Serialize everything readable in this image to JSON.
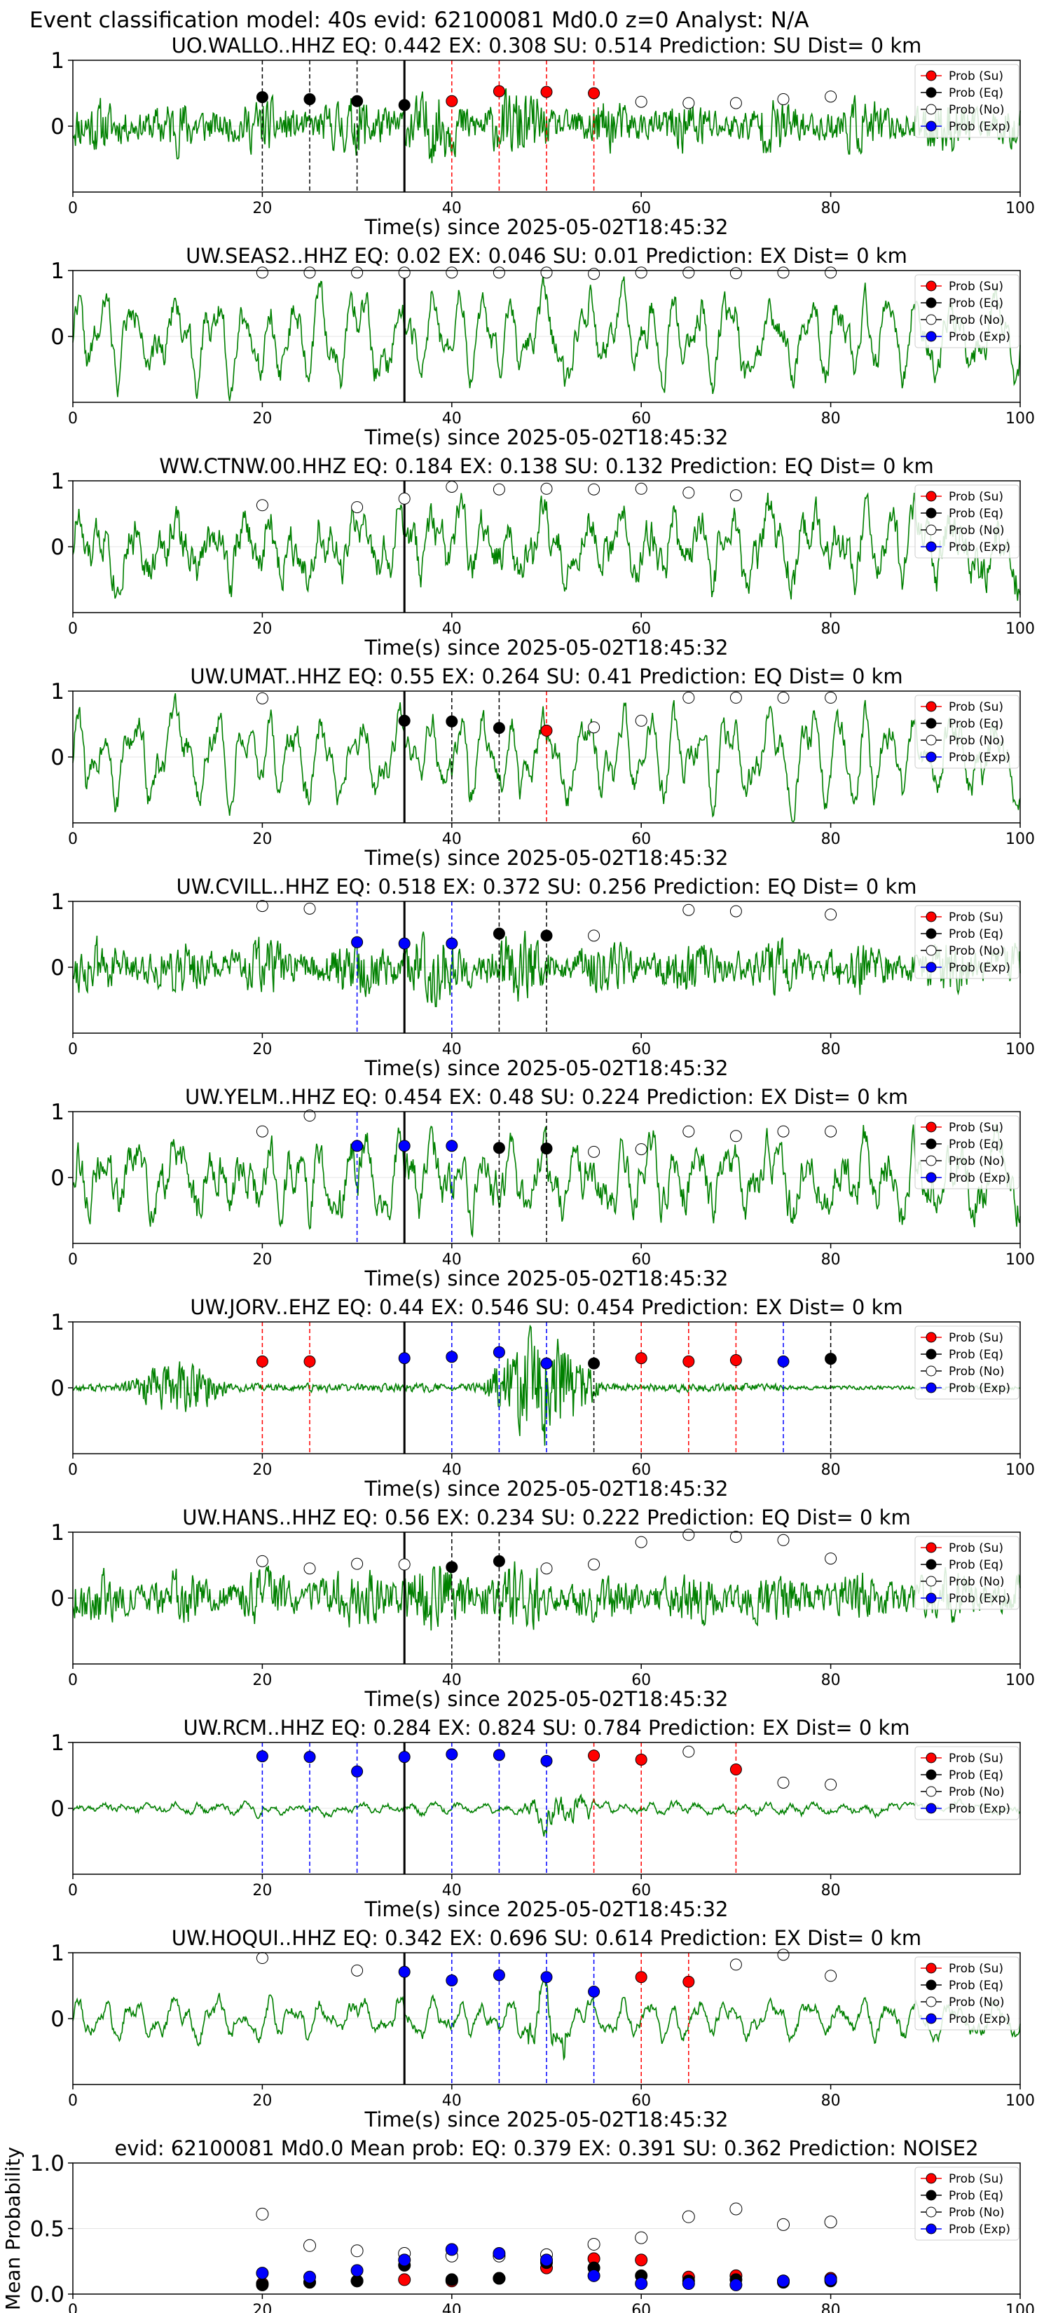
{
  "figure_title": "Event classification model: 40s evid: 62100081 Md0.0 z=0 Analyst: N/A",
  "legend_labels": {
    "su": "Prob (Su)",
    "eq": "Prob (Eq)",
    "no": "Prob (No)",
    "exp": "Prob (Exp)"
  },
  "colors": {
    "waveform": "#008000",
    "su": "#ff0000",
    "eq": "#000000",
    "no": "#ffffff",
    "exp": "#0000ff",
    "origin_line": "#000000"
  },
  "chart_data": [
    {
      "type": "line",
      "title": "UO.WALLO..HHZ   EQ: 0.442   EX: 0.308   SU: 0.514   Prediction: SU    Dist= 0 km",
      "xlabel": "Time(s) since 2025-05-02T18:45:32",
      "xlim": [
        0,
        100
      ],
      "ylim": [
        -1,
        1
      ],
      "xticks": [
        "0",
        "20",
        "40",
        "60",
        "80",
        "100"
      ],
      "yticks": [
        "0",
        "1"
      ],
      "origin_time": 35,
      "waveform": {
        "style": "noise",
        "seed": 11
      },
      "points": [
        {
          "x": 20,
          "y": 0.44,
          "cls": "eq"
        },
        {
          "x": 25,
          "y": 0.41,
          "cls": "eq"
        },
        {
          "x": 30,
          "y": 0.38,
          "cls": "eq"
        },
        {
          "x": 35,
          "y": 0.32,
          "cls": "eq"
        },
        {
          "x": 40,
          "y": 0.38,
          "cls": "su"
        },
        {
          "x": 45,
          "y": 0.53,
          "cls": "su"
        },
        {
          "x": 50,
          "y": 0.52,
          "cls": "su"
        },
        {
          "x": 55,
          "y": 0.5,
          "cls": "su"
        },
        {
          "x": 60,
          "y": 0.37,
          "cls": "no"
        },
        {
          "x": 65,
          "y": 0.35,
          "cls": "no"
        },
        {
          "x": 70,
          "y": 0.35,
          "cls": "no"
        },
        {
          "x": 75,
          "y": 0.41,
          "cls": "no"
        },
        {
          "x": 80,
          "y": 0.45,
          "cls": "no"
        }
      ]
    },
    {
      "type": "line",
      "title": "UW.SEAS2..HHZ   EQ: 0.02   EX: 0.046   SU: 0.01   Prediction: EX    Dist= 0 km",
      "xlabel": "Time(s) since 2025-05-02T18:45:32",
      "xlim": [
        0,
        100
      ],
      "ylim": [
        -1,
        1
      ],
      "xticks": [
        "0",
        "20",
        "40",
        "60",
        "80",
        "100"
      ],
      "yticks": [
        "0",
        "1"
      ],
      "origin_time": 35,
      "waveform": {
        "style": "wavy",
        "seed": 22
      },
      "points": [
        {
          "x": 20,
          "y": 0.97,
          "cls": "no"
        },
        {
          "x": 25,
          "y": 0.97,
          "cls": "no"
        },
        {
          "x": 30,
          "y": 0.97,
          "cls": "no"
        },
        {
          "x": 35,
          "y": 0.97,
          "cls": "no"
        },
        {
          "x": 40,
          "y": 0.97,
          "cls": "no"
        },
        {
          "x": 45,
          "y": 0.97,
          "cls": "no"
        },
        {
          "x": 50,
          "y": 0.97,
          "cls": "no"
        },
        {
          "x": 55,
          "y": 0.95,
          "cls": "no"
        },
        {
          "x": 60,
          "y": 0.97,
          "cls": "no"
        },
        {
          "x": 65,
          "y": 0.97,
          "cls": "no"
        },
        {
          "x": 70,
          "y": 0.96,
          "cls": "no"
        },
        {
          "x": 75,
          "y": 0.97,
          "cls": "no"
        },
        {
          "x": 80,
          "y": 0.97,
          "cls": "no"
        }
      ]
    },
    {
      "type": "line",
      "title": "WW.CTNW.00.HHZ   EQ: 0.184   EX: 0.138   SU: 0.132   Prediction: EQ    Dist= 0 km",
      "xlabel": "Time(s) since 2025-05-02T18:45:32",
      "xlim": [
        0,
        100
      ],
      "ylim": [
        -1,
        1
      ],
      "xticks": [
        "0",
        "20",
        "40",
        "60",
        "80",
        "100"
      ],
      "yticks": [
        "0",
        "1"
      ],
      "origin_time": 35,
      "waveform": {
        "style": "mixed",
        "seed": 33
      },
      "points": [
        {
          "x": 20,
          "y": 0.63,
          "cls": "no"
        },
        {
          "x": 30,
          "y": 0.6,
          "cls": "no"
        },
        {
          "x": 35,
          "y": 0.73,
          "cls": "no"
        },
        {
          "x": 40,
          "y": 0.91,
          "cls": "no"
        },
        {
          "x": 45,
          "y": 0.87,
          "cls": "no"
        },
        {
          "x": 50,
          "y": 0.88,
          "cls": "no"
        },
        {
          "x": 55,
          "y": 0.87,
          "cls": "no"
        },
        {
          "x": 60,
          "y": 0.88,
          "cls": "no"
        },
        {
          "x": 65,
          "y": 0.82,
          "cls": "no"
        },
        {
          "x": 70,
          "y": 0.78,
          "cls": "no"
        }
      ]
    },
    {
      "type": "line",
      "title": "UW.UMAT..HHZ   EQ: 0.55   EX: 0.264   SU: 0.41   Prediction: EQ    Dist= 0 km",
      "xlabel": "Time(s) since 2025-05-02T18:45:32",
      "xlim": [
        0,
        100
      ],
      "ylim": [
        -1,
        1
      ],
      "xticks": [
        "0",
        "20",
        "40",
        "60",
        "80",
        "100"
      ],
      "yticks": [
        "0",
        "1"
      ],
      "origin_time": 35,
      "waveform": {
        "style": "wavy",
        "seed": 44
      },
      "points": [
        {
          "x": 20,
          "y": 0.89,
          "cls": "no"
        },
        {
          "x": 35,
          "y": 0.55,
          "cls": "eq"
        },
        {
          "x": 40,
          "y": 0.54,
          "cls": "eq"
        },
        {
          "x": 45,
          "y": 0.44,
          "cls": "eq"
        },
        {
          "x": 50,
          "y": 0.4,
          "cls": "su"
        },
        {
          "x": 55,
          "y": 0.45,
          "cls": "no"
        },
        {
          "x": 60,
          "y": 0.55,
          "cls": "no"
        },
        {
          "x": 65,
          "y": 0.9,
          "cls": "no"
        },
        {
          "x": 70,
          "y": 0.9,
          "cls": "no"
        },
        {
          "x": 75,
          "y": 0.9,
          "cls": "no"
        },
        {
          "x": 80,
          "y": 0.9,
          "cls": "no"
        }
      ]
    },
    {
      "type": "line",
      "title": "UW.CVILL..HHZ   EQ: 0.518   EX: 0.372   SU: 0.256   Prediction: EQ    Dist= 0 km",
      "xlabel": "Time(s) since 2025-05-02T18:45:32",
      "xlim": [
        0,
        100
      ],
      "ylim": [
        -1,
        1
      ],
      "xticks": [
        "0",
        "20",
        "40",
        "60",
        "80",
        "100"
      ],
      "yticks": [
        "0",
        "1"
      ],
      "origin_time": 35,
      "waveform": {
        "style": "noise",
        "seed": 55
      },
      "points": [
        {
          "x": 20,
          "y": 0.93,
          "cls": "no"
        },
        {
          "x": 25,
          "y": 0.89,
          "cls": "no"
        },
        {
          "x": 30,
          "y": 0.38,
          "cls": "exp"
        },
        {
          "x": 35,
          "y": 0.36,
          "cls": "exp"
        },
        {
          "x": 40,
          "y": 0.36,
          "cls": "exp"
        },
        {
          "x": 45,
          "y": 0.51,
          "cls": "eq"
        },
        {
          "x": 50,
          "y": 0.48,
          "cls": "eq"
        },
        {
          "x": 55,
          "y": 0.48,
          "cls": "no"
        },
        {
          "x": 65,
          "y": 0.87,
          "cls": "no"
        },
        {
          "x": 70,
          "y": 0.85,
          "cls": "no"
        },
        {
          "x": 80,
          "y": 0.8,
          "cls": "no"
        }
      ]
    },
    {
      "type": "line",
      "title": "UW.YELM..HHZ   EQ: 0.454   EX: 0.48   SU: 0.224   Prediction: EX    Dist= 0 km",
      "xlabel": "Time(s) since 2025-05-02T18:45:32",
      "xlim": [
        0,
        100
      ],
      "ylim": [
        -1,
        1
      ],
      "xticks": [
        "0",
        "20",
        "40",
        "60",
        "80",
        "100"
      ],
      "yticks": [
        "0",
        "1"
      ],
      "origin_time": 35,
      "waveform": {
        "style": "mixed",
        "seed": 66
      },
      "points": [
        {
          "x": 20,
          "y": 0.7,
          "cls": "no"
        },
        {
          "x": 25,
          "y": 0.94,
          "cls": "no"
        },
        {
          "x": 30,
          "y": 0.48,
          "cls": "exp"
        },
        {
          "x": 35,
          "y": 0.48,
          "cls": "exp"
        },
        {
          "x": 40,
          "y": 0.48,
          "cls": "exp"
        },
        {
          "x": 45,
          "y": 0.45,
          "cls": "eq"
        },
        {
          "x": 50,
          "y": 0.44,
          "cls": "eq"
        },
        {
          "x": 55,
          "y": 0.39,
          "cls": "no"
        },
        {
          "x": 60,
          "y": 0.43,
          "cls": "no"
        },
        {
          "x": 65,
          "y": 0.7,
          "cls": "no"
        },
        {
          "x": 70,
          "y": 0.63,
          "cls": "no"
        },
        {
          "x": 75,
          "y": 0.7,
          "cls": "no"
        },
        {
          "x": 80,
          "y": 0.7,
          "cls": "no"
        }
      ]
    },
    {
      "type": "line",
      "title": "UW.JORV..EHZ   EQ: 0.44   EX: 0.546   SU: 0.454    Prediction: EX    Dist= 0 km",
      "xlabel": "Time(s) since 2025-05-02T18:45:32",
      "xlim": [
        0,
        100
      ],
      "ylim": [
        -1,
        1
      ],
      "xticks": [
        "0",
        "20",
        "40",
        "60",
        "80",
        "100"
      ],
      "yticks": [
        "0",
        "1"
      ],
      "origin_time": 35,
      "waveform": {
        "style": "bursts",
        "seed": 77
      },
      "points": [
        {
          "x": 20,
          "y": 0.4,
          "cls": "su"
        },
        {
          "x": 25,
          "y": 0.4,
          "cls": "su"
        },
        {
          "x": 35,
          "y": 0.45,
          "cls": "exp"
        },
        {
          "x": 40,
          "y": 0.47,
          "cls": "exp"
        },
        {
          "x": 45,
          "y": 0.54,
          "cls": "exp"
        },
        {
          "x": 50,
          "y": 0.37,
          "cls": "exp"
        },
        {
          "x": 55,
          "y": 0.37,
          "cls": "eq"
        },
        {
          "x": 60,
          "y": 0.45,
          "cls": "su"
        },
        {
          "x": 65,
          "y": 0.4,
          "cls": "su"
        },
        {
          "x": 70,
          "y": 0.42,
          "cls": "su"
        },
        {
          "x": 75,
          "y": 0.4,
          "cls": "exp"
        },
        {
          "x": 80,
          "y": 0.44,
          "cls": "eq"
        }
      ]
    },
    {
      "type": "line",
      "title": "UW.HANS..HHZ   EQ: 0.56   EX: 0.234   SU: 0.222   Prediction: EQ    Dist= 0 km",
      "xlabel": "Time(s) since 2025-05-02T18:45:32",
      "xlim": [
        0,
        100
      ],
      "ylim": [
        -1,
        1
      ],
      "xticks": [
        "0",
        "20",
        "40",
        "60",
        "80",
        "100"
      ],
      "yticks": [
        "0",
        "1"
      ],
      "origin_time": 35,
      "waveform": {
        "style": "noise",
        "seed": 88
      },
      "points": [
        {
          "x": 20,
          "y": 0.56,
          "cls": "no"
        },
        {
          "x": 25,
          "y": 0.45,
          "cls": "no"
        },
        {
          "x": 30,
          "y": 0.52,
          "cls": "no"
        },
        {
          "x": 35,
          "y": 0.51,
          "cls": "no"
        },
        {
          "x": 40,
          "y": 0.47,
          "cls": "eq"
        },
        {
          "x": 45,
          "y": 0.56,
          "cls": "eq"
        },
        {
          "x": 50,
          "y": 0.45,
          "cls": "no"
        },
        {
          "x": 55,
          "y": 0.51,
          "cls": "no"
        },
        {
          "x": 60,
          "y": 0.85,
          "cls": "no"
        },
        {
          "x": 65,
          "y": 0.96,
          "cls": "no"
        },
        {
          "x": 70,
          "y": 0.93,
          "cls": "no"
        },
        {
          "x": 75,
          "y": 0.88,
          "cls": "no"
        },
        {
          "x": 80,
          "y": 0.6,
          "cls": "no"
        }
      ]
    },
    {
      "type": "line",
      "title": "UW.RCM..HHZ   EQ: 0.284   EX: 0.824   SU: 0.784   Prediction: EX    Dist= 0 km",
      "xlabel": "Time(s) since 2025-05-02T18:45:32",
      "xlim": [
        0,
        100
      ],
      "ylim": [
        -1,
        1
      ],
      "xticks": [
        "0",
        "20",
        "40",
        "60",
        "80"
      ],
      "yticks": [
        "0",
        "1"
      ],
      "origin_time": 35,
      "waveform": {
        "style": "quietburst",
        "seed": 99
      },
      "points": [
        {
          "x": 20,
          "y": 0.79,
          "cls": "exp"
        },
        {
          "x": 25,
          "y": 0.78,
          "cls": "exp"
        },
        {
          "x": 30,
          "y": 0.56,
          "cls": "exp"
        },
        {
          "x": 35,
          "y": 0.78,
          "cls": "exp"
        },
        {
          "x": 40,
          "y": 0.82,
          "cls": "exp"
        },
        {
          "x": 45,
          "y": 0.81,
          "cls": "exp"
        },
        {
          "x": 50,
          "y": 0.72,
          "cls": "exp"
        },
        {
          "x": 55,
          "y": 0.8,
          "cls": "su"
        },
        {
          "x": 60,
          "y": 0.74,
          "cls": "su"
        },
        {
          "x": 65,
          "y": 0.86,
          "cls": "no"
        },
        {
          "x": 70,
          "y": 0.59,
          "cls": "su"
        },
        {
          "x": 75,
          "y": 0.39,
          "cls": "no"
        },
        {
          "x": 80,
          "y": 0.36,
          "cls": "no"
        }
      ]
    },
    {
      "type": "line",
      "title": "UW.HOQUI..HHZ   EQ: 0.342   EX: 0.696   SU: 0.614   Prediction: EX    Dist= 0 km",
      "xlabel": "Time(s) since 2025-05-02T18:45:32",
      "xlim": [
        0,
        100
      ],
      "ylim": [
        -1,
        1
      ],
      "xticks": [
        "0",
        "20",
        "40",
        "60",
        "80",
        "100"
      ],
      "yticks": [
        "0",
        "1"
      ],
      "origin_time": 35,
      "waveform": {
        "style": "wavy_small",
        "seed": 111
      },
      "points": [
        {
          "x": 20,
          "y": 0.92,
          "cls": "no"
        },
        {
          "x": 30,
          "y": 0.73,
          "cls": "no"
        },
        {
          "x": 35,
          "y": 0.71,
          "cls": "exp"
        },
        {
          "x": 40,
          "y": 0.58,
          "cls": "exp"
        },
        {
          "x": 45,
          "y": 0.66,
          "cls": "exp"
        },
        {
          "x": 50,
          "y": 0.63,
          "cls": "exp"
        },
        {
          "x": 55,
          "y": 0.41,
          "cls": "exp"
        },
        {
          "x": 60,
          "y": 0.63,
          "cls": "su"
        },
        {
          "x": 65,
          "y": 0.56,
          "cls": "su"
        },
        {
          "x": 70,
          "y": 0.82,
          "cls": "no"
        },
        {
          "x": 75,
          "y": 0.97,
          "cls": "no"
        },
        {
          "x": 80,
          "y": 0.65,
          "cls": "no"
        }
      ]
    },
    {
      "type": "scatter",
      "title": "evid: 62100081   Md0.0   Mean prob:   EQ: 0.379   EX: 0.391   SU: 0.362   Prediction: NOISE2",
      "xlabel": "",
      "ylabel": "Mean Probability",
      "xlim": [
        0,
        100
      ],
      "ylim": [
        0,
        1
      ],
      "xticks": [
        "0",
        "20",
        "40",
        "60",
        "80",
        "100"
      ],
      "yticks": [
        "0.0",
        "0.5",
        "1.0"
      ],
      "series": [
        {
          "name": "Prob (Su)",
          "cls": "su",
          "x": [
            20,
            25,
            30,
            35,
            40,
            45,
            50,
            55,
            60,
            65,
            70,
            75,
            80
          ],
          "y": [
            0.08,
            0.09,
            0.1,
            0.11,
            0.1,
            0.12,
            0.2,
            0.27,
            0.26,
            0.13,
            0.14,
            0.1,
            0.12
          ]
        },
        {
          "name": "Prob (Eq)",
          "cls": "eq",
          "x": [
            20,
            25,
            30,
            35,
            40,
            45,
            50,
            55,
            60,
            65,
            70,
            75,
            80
          ],
          "y": [
            0.07,
            0.09,
            0.1,
            0.22,
            0.11,
            0.12,
            0.24,
            0.2,
            0.14,
            0.1,
            0.11,
            0.09,
            0.1
          ]
        },
        {
          "name": "Prob (No)",
          "cls": "no",
          "x": [
            20,
            25,
            30,
            35,
            40,
            45,
            50,
            55,
            60,
            65,
            70,
            75,
            80
          ],
          "y": [
            0.61,
            0.37,
            0.33,
            0.31,
            0.29,
            0.29,
            0.3,
            0.38,
            0.43,
            0.59,
            0.65,
            0.53,
            0.55
          ]
        },
        {
          "name": "Prob (Exp)",
          "cls": "exp",
          "x": [
            20,
            25,
            30,
            35,
            40,
            45,
            50,
            55,
            60,
            65,
            70,
            75,
            80
          ],
          "y": [
            0.16,
            0.13,
            0.18,
            0.26,
            0.34,
            0.31,
            0.26,
            0.14,
            0.08,
            0.08,
            0.07,
            0.1,
            0.11
          ]
        }
      ]
    }
  ]
}
